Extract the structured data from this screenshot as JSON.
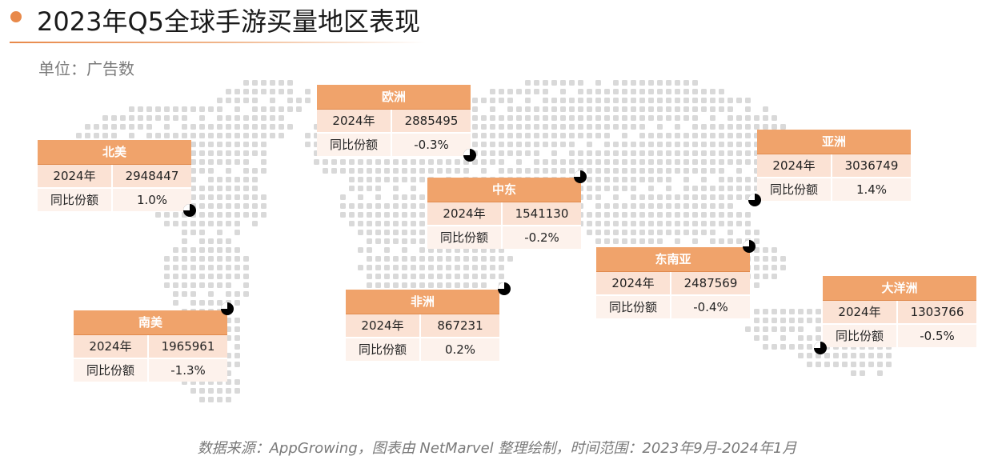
{
  "header": {
    "title": "2023年Q5全球手游买量地区表现",
    "unit": "单位：广告数"
  },
  "colors": {
    "accent": "#e8894a",
    "card_header": "#f0a36b",
    "row_1": "#fbe2d4",
    "row_2": "#fdf2ec",
    "map_dots": "#d9d9d9"
  },
  "regions": [
    {
      "name": "北美",
      "year_label": "2024年",
      "value": "2948447",
      "yoy_label": "同比份额",
      "yoy": "1.0%"
    },
    {
      "name": "欧洲",
      "year_label": "2024年",
      "value": "2885495",
      "yoy_label": "同比份额",
      "yoy": "-0.3%"
    },
    {
      "name": "中东",
      "year_label": "2024年",
      "value": "1541130",
      "yoy_label": "同比份额",
      "yoy": "-0.2%"
    },
    {
      "name": "亚洲",
      "year_label": "2024年",
      "value": "3036749",
      "yoy_label": "同比份额",
      "yoy": "1.4%"
    },
    {
      "name": "东南亚",
      "year_label": "2024年",
      "value": "2487569",
      "yoy_label": "同比份额",
      "yoy": "-0.4%"
    },
    {
      "name": "大洋洲",
      "year_label": "2024年",
      "value": "1303766",
      "yoy_label": "同比份额",
      "yoy": "-0.5%"
    },
    {
      "name": "非洲",
      "year_label": "2024年",
      "value": "867231",
      "yoy_label": "同比份额",
      "yoy": "0.2%"
    },
    {
      "name": "南美",
      "year_label": "2024年",
      "value": "1965961",
      "yoy_label": "同比份额",
      "yoy": "-1.3%"
    }
  ],
  "footer": {
    "source": "数据来源：AppGrowing，图表由 NetMarvel 整理绘制，时间范围：2023年9月-2024年1月"
  }
}
